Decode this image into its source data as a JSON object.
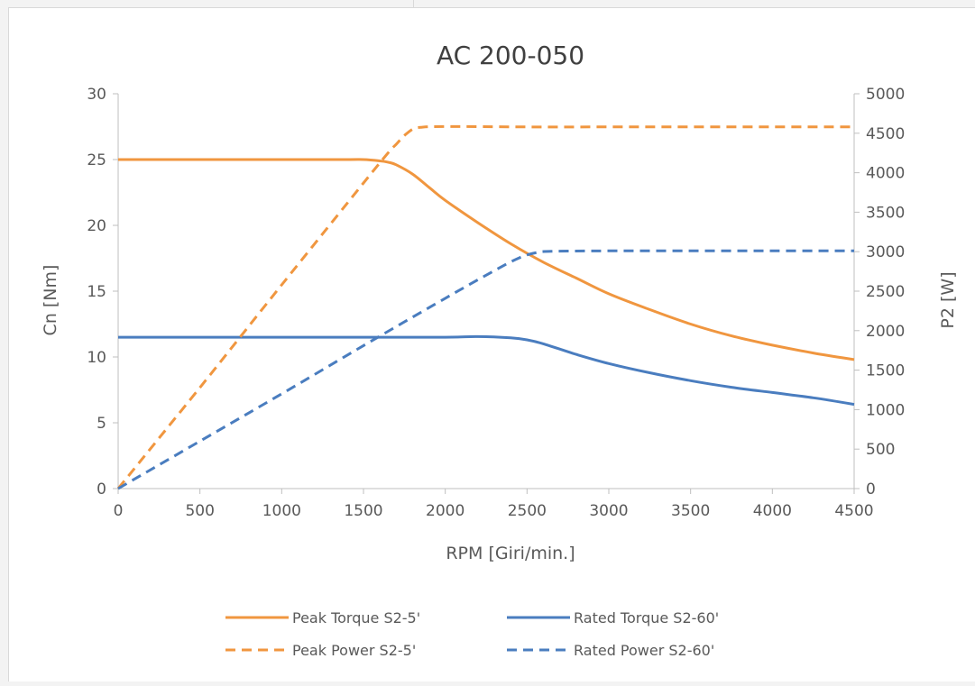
{
  "chart_data": {
    "type": "line",
    "title": "AC 200-050",
    "xlabel": "RPM [Giri/min.]",
    "ylabel": "Cn [Nm]",
    "y2label": "P2 [W]",
    "xlim": [
      0,
      4500
    ],
    "ylim": [
      0,
      30
    ],
    "y2lim": [
      0,
      5000
    ],
    "x_ticks": [
      "0",
      "500",
      "1000",
      "1500",
      "2000",
      "2500",
      "3000",
      "3500",
      "4000",
      "4500"
    ],
    "y_ticks": [
      "0",
      "5",
      "10",
      "15",
      "20",
      "25",
      "30"
    ],
    "y2_ticks": [
      "0",
      "500",
      "1000",
      "1500",
      "2000",
      "2500",
      "3000",
      "3500",
      "4000",
      "4500",
      "5000"
    ],
    "grid": false,
    "legend_position": "bottom",
    "series": [
      {
        "name": "Peak Torque S2-5'",
        "axis": "left",
        "color": "#F0963F",
        "dash": "solid",
        "x": [
          0,
          500,
          1000,
          1400,
          1500,
          1600,
          1650,
          1700,
          1800,
          1900,
          2000,
          2200,
          2400,
          2600,
          2800,
          3000,
          3250,
          3500,
          3750,
          4000,
          4250,
          4500
        ],
        "y": [
          25.0,
          25.0,
          25.0,
          25.0,
          25.0,
          24.9,
          24.8,
          24.6,
          23.9,
          22.9,
          21.9,
          20.2,
          18.6,
          17.2,
          16.0,
          14.8,
          13.6,
          12.5,
          11.6,
          10.9,
          10.3,
          9.8
        ]
      },
      {
        "name": "Rated Torque S2-60'",
        "axis": "left",
        "color": "#4A7DBF",
        "dash": "solid",
        "x": [
          0,
          500,
          1000,
          1500,
          2000,
          2200,
          2400,
          2500,
          2600,
          2800,
          3000,
          3250,
          3500,
          3750,
          4000,
          4250,
          4500
        ],
        "y": [
          11.5,
          11.5,
          11.5,
          11.5,
          11.5,
          11.55,
          11.45,
          11.3,
          11.0,
          10.2,
          9.5,
          8.8,
          8.2,
          7.7,
          7.3,
          6.9,
          6.4
        ]
      },
      {
        "name": "Peak Power S2-5'",
        "axis": "right",
        "color": "#F0963F",
        "dash": "dashed",
        "x": [
          0,
          500,
          1000,
          1500,
          1650,
          1700,
          1750,
          1800,
          1850,
          2000,
          2500,
          3000,
          3500,
          4000,
          4500
        ],
        "y": [
          0,
          1280,
          2580,
          3870,
          4250,
          4360,
          4470,
          4550,
          4575,
          4585,
          4580,
          4580,
          4580,
          4580,
          4580
        ]
      },
      {
        "name": "Rated Power S2-60'",
        "axis": "right",
        "color": "#4A7DBF",
        "dash": "dashed",
        "x": [
          0,
          500,
          1000,
          1500,
          2000,
          2300,
          2450,
          2550,
          2650,
          3000,
          3500,
          4000,
          4500
        ],
        "y": [
          0,
          600,
          1200,
          1810,
          2410,
          2760,
          2920,
          2985,
          3005,
          3010,
          3010,
          3010,
          3010
        ]
      }
    ]
  }
}
